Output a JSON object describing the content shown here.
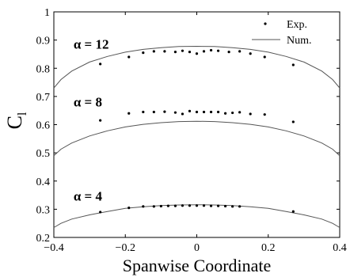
{
  "chart_data": {
    "type": "scatter",
    "xlabel": "Spanwise Coordinate",
    "ylabel": "C",
    "ylabel_subscript": "l",
    "xlim": [
      -0.4,
      0.4
    ],
    "ylim": [
      0.2,
      1.0
    ],
    "x_ticks": [
      -0.4,
      -0.2,
      0,
      0.2,
      0.4
    ],
    "x_tick_labels": [
      "−0.4",
      "−0.2",
      "0",
      "0.2",
      "0.4"
    ],
    "y_ticks": [
      0.2,
      0.3,
      0.4,
      0.5,
      0.6,
      0.7,
      0.8,
      0.9,
      1.0
    ],
    "y_tick_labels": [
      "0.2",
      "0.3",
      "0.4",
      "0.5",
      "0.6",
      "0.7",
      "0.8",
      "0.9",
      "1"
    ],
    "grid": false,
    "legend": {
      "placement": "top-right",
      "entries": [
        {
          "label": "Exp.",
          "marker": "dot"
        },
        {
          "label": "Num.",
          "marker": "line"
        }
      ]
    },
    "annotations": [
      {
        "text": "α = 12",
        "x": -0.345,
        "y": 0.87
      },
      {
        "text": "α = 8",
        "x": -0.345,
        "y": 0.664
      },
      {
        "text": "α = 4",
        "x": -0.345,
        "y": 0.33
      }
    ],
    "series": [
      {
        "group": "α = 12",
        "kind": "experimental",
        "x": [
          -0.27,
          -0.19,
          -0.15,
          -0.12,
          -0.09,
          -0.06,
          -0.04,
          -0.02,
          0.0,
          0.02,
          0.04,
          0.06,
          0.09,
          0.12,
          0.15,
          0.19,
          0.27
        ],
        "y": [
          0.815,
          0.84,
          0.855,
          0.86,
          0.86,
          0.858,
          0.862,
          0.858,
          0.852,
          0.86,
          0.864,
          0.862,
          0.858,
          0.86,
          0.852,
          0.84,
          0.812
        ]
      },
      {
        "group": "α = 12",
        "kind": "numerical",
        "x": [
          -0.4,
          -0.38,
          -0.35,
          -0.3,
          -0.25,
          -0.2,
          -0.15,
          -0.1,
          -0.05,
          0.0,
          0.05,
          0.1,
          0.15,
          0.2,
          0.25,
          0.3,
          0.35,
          0.38,
          0.4
        ],
        "y": [
          0.73,
          0.76,
          0.79,
          0.822,
          0.842,
          0.857,
          0.867,
          0.873,
          0.877,
          0.878,
          0.877,
          0.873,
          0.867,
          0.857,
          0.842,
          0.822,
          0.79,
          0.76,
          0.73
        ]
      },
      {
        "group": "α = 8",
        "kind": "experimental",
        "x": [
          -0.27,
          -0.19,
          -0.15,
          -0.12,
          -0.09,
          -0.06,
          -0.04,
          -0.02,
          0.0,
          0.02,
          0.04,
          0.06,
          0.08,
          0.1,
          0.12,
          0.15,
          0.19,
          0.27
        ],
        "y": [
          0.615,
          0.64,
          0.645,
          0.645,
          0.646,
          0.643,
          0.638,
          0.648,
          0.645,
          0.645,
          0.645,
          0.645,
          0.64,
          0.642,
          0.644,
          0.638,
          0.636,
          0.61
        ]
      },
      {
        "group": "α = 8",
        "kind": "numerical",
        "x": [
          -0.4,
          -0.38,
          -0.35,
          -0.3,
          -0.25,
          -0.2,
          -0.15,
          -0.1,
          -0.05,
          0.0,
          0.05,
          0.1,
          0.15,
          0.2,
          0.25,
          0.3,
          0.35,
          0.38,
          0.4
        ],
        "y": [
          0.49,
          0.513,
          0.535,
          0.56,
          0.578,
          0.592,
          0.601,
          0.607,
          0.611,
          0.612,
          0.611,
          0.607,
          0.601,
          0.592,
          0.578,
          0.56,
          0.535,
          0.513,
          0.49
        ]
      },
      {
        "group": "α = 4",
        "kind": "experimental",
        "x": [
          -0.27,
          -0.19,
          -0.15,
          -0.12,
          -0.1,
          -0.08,
          -0.06,
          -0.04,
          -0.02,
          0.0,
          0.02,
          0.04,
          0.06,
          0.08,
          0.1,
          0.12,
          0.27
        ],
        "y": [
          0.29,
          0.305,
          0.31,
          0.31,
          0.311,
          0.312,
          0.312,
          0.313,
          0.313,
          0.313,
          0.313,
          0.312,
          0.312,
          0.311,
          0.31,
          0.31,
          0.292
        ]
      },
      {
        "group": "α = 4",
        "kind": "numerical",
        "x": [
          -0.4,
          -0.38,
          -0.35,
          -0.3,
          -0.25,
          -0.2,
          -0.15,
          -0.1,
          -0.05,
          0.0,
          0.05,
          0.1,
          0.15,
          0.2,
          0.25,
          0.3,
          0.35,
          0.38,
          0.4
        ],
        "y": [
          0.235,
          0.25,
          0.265,
          0.28,
          0.292,
          0.303,
          0.309,
          0.313,
          0.315,
          0.316,
          0.315,
          0.313,
          0.309,
          0.303,
          0.292,
          0.28,
          0.265,
          0.25,
          0.235
        ]
      }
    ]
  }
}
